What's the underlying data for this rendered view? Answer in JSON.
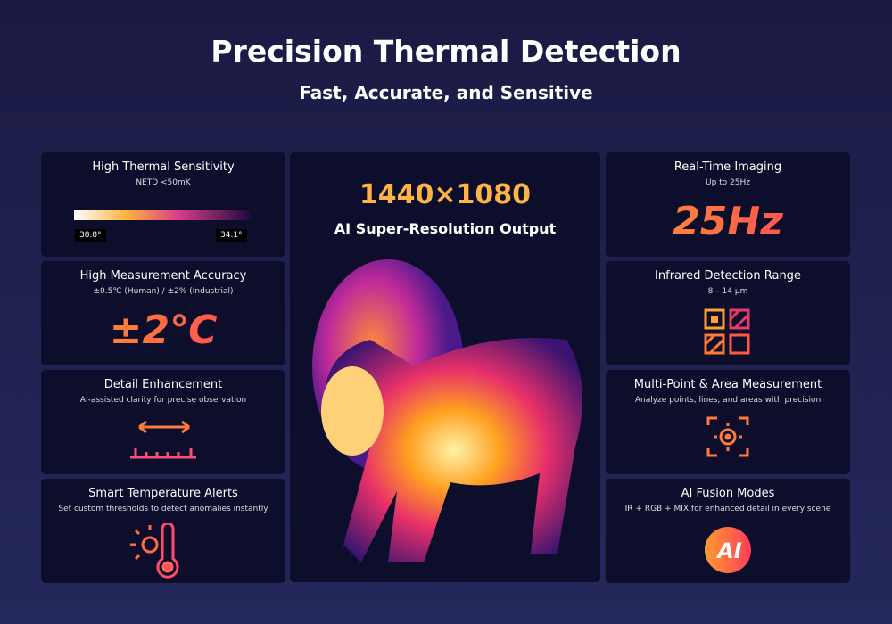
{
  "header": {
    "title": "Precision Thermal Detection",
    "subtitle": "Fast, Accurate, and Sensitive"
  },
  "left_cards": [
    {
      "title": "High Thermal Sensitivity",
      "subtitle": "NETD <50mK",
      "scale_labels": [
        "38.8°",
        "34.1°"
      ]
    },
    {
      "title": "High Measurement Accuracy",
      "subtitle": "±0.5℃ (Human) / ±2% (Industrial)",
      "highlight": "±2℃"
    },
    {
      "title": "Detail Enhancement",
      "subtitle": "AI-assisted clarity for precise observation"
    },
    {
      "title": "Smart Temperature Alerts",
      "subtitle": "Set custom thresholds to detect anomalies instantly"
    }
  ],
  "center": {
    "highlight": "1440×1080",
    "subtitle": "AI Super-Resolution Output"
  },
  "right_cards": [
    {
      "title": "Real-Time Imaging",
      "subtitle": "Up to 25Hz",
      "highlight": "25Hz"
    },
    {
      "title": "Infrared Detection Range",
      "subtitle": "8 – 14 μm"
    },
    {
      "title": "Multi-Point & Area Measurement",
      "subtitle": "Analyze points, lines, and areas with precision"
    },
    {
      "title": "AI Fusion Modes",
      "subtitle": "IR + RGB + MIX for enhanced detail in every scene",
      "icon_text": "AI"
    }
  ]
}
